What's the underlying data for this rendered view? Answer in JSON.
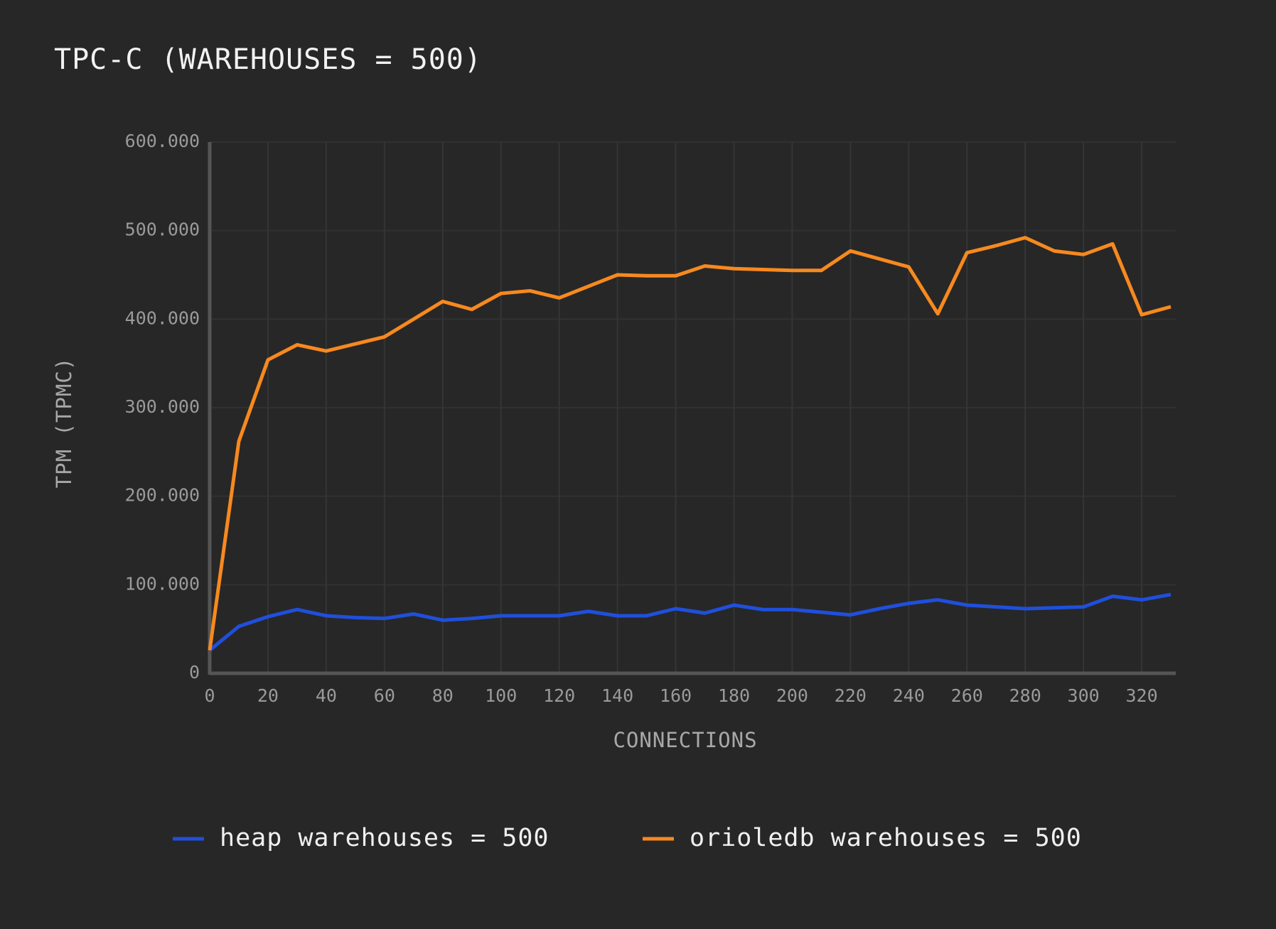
{
  "chart_data": {
    "type": "line",
    "title": "TPC-C (WAREHOUSES = 500)",
    "xlabel": "CONNECTIONS",
    "ylabel": "TPM (TPMC)",
    "x": [
      0,
      10,
      20,
      30,
      40,
      50,
      60,
      70,
      80,
      90,
      100,
      110,
      120,
      130,
      140,
      150,
      160,
      170,
      180,
      190,
      200,
      210,
      220,
      230,
      240,
      250,
      260,
      270,
      280,
      290,
      300,
      310,
      320,
      330
    ],
    "series": [
      {
        "name": "heap warehouses = 500",
        "color": "#1f4fdb",
        "values": [
          26000,
          53000,
          64000,
          72000,
          65000,
          63000,
          62000,
          67000,
          60000,
          62000,
          65000,
          65000,
          65000,
          70000,
          65000,
          65000,
          73000,
          68000,
          77000,
          72000,
          72000,
          69000,
          66000,
          73000,
          79000,
          83000,
          77000,
          75000,
          73000,
          74000,
          75000,
          87000,
          83000,
          89000
        ]
      },
      {
        "name": "orioledb warehouses = 500",
        "color": "#f7891f",
        "values": [
          26000,
          262000,
          354000,
          371000,
          364000,
          372000,
          380000,
          400000,
          420000,
          411000,
          429000,
          432000,
          424000,
          437000,
          450000,
          449000,
          449000,
          460000,
          457000,
          456000,
          455000,
          455000,
          477000,
          468000,
          459000,
          406000,
          475000,
          483000,
          492000,
          477000,
          473000,
          485000,
          405000,
          414000
        ]
      }
    ],
    "xlim": [
      0,
      331.7
    ],
    "xticks": [
      0,
      20,
      40,
      60,
      80,
      100,
      120,
      140,
      160,
      180,
      200,
      220,
      240,
      260,
      280,
      300,
      320
    ],
    "ylim": [
      0,
      600000
    ],
    "yticks": [
      0,
      {
        "value": 100000,
        "label": "100.000"
      },
      {
        "value": 200000,
        "label": "200.000"
      },
      {
        "value": 300000,
        "label": "300.000"
      },
      {
        "value": 400000,
        "label": "400.000"
      },
      {
        "value": 500000,
        "label": "500.000"
      },
      {
        "value": 600000,
        "label": "600.000"
      }
    ],
    "grid": true
  }
}
